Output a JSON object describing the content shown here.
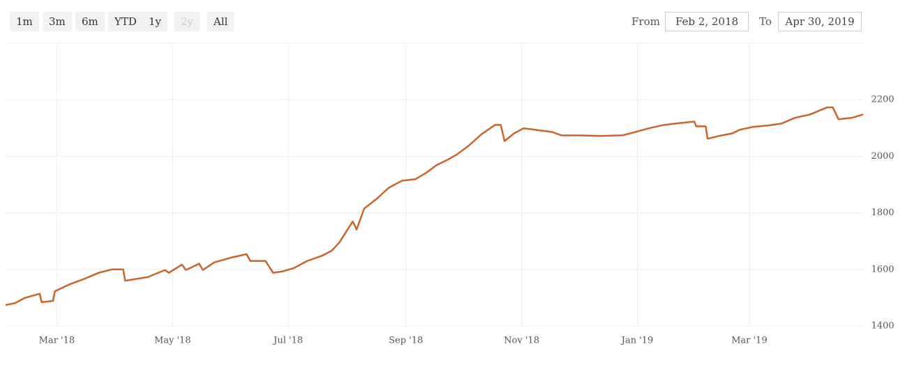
{
  "chart_data": {
    "type": "line",
    "range_selector": {
      "buttons": [
        {
          "label": "1m",
          "enabled": true
        },
        {
          "label": "3m",
          "enabled": true
        },
        {
          "label": "6m",
          "enabled": true
        },
        {
          "label": "YTD",
          "enabled": true
        },
        {
          "label": "1y",
          "enabled": true
        },
        {
          "label": "2y",
          "enabled": false
        },
        {
          "label": "All",
          "enabled": true
        }
      ],
      "from_label": "From",
      "from": "Feb 2, 2018",
      "to_label": "To",
      "to": "Apr 30, 2019"
    },
    "x": [
      "2018-02-02",
      "2018-02-07",
      "2018-02-12",
      "2018-02-20",
      "2018-02-21",
      "2018-02-27",
      "2018-02-28",
      "2018-03-08",
      "2018-03-16",
      "2018-03-23",
      "2018-03-30",
      "2018-04-05",
      "2018-04-06",
      "2018-04-18",
      "2018-04-27",
      "2018-04-29",
      "2018-05-06",
      "2018-05-08",
      "2018-05-15",
      "2018-05-17",
      "2018-05-23",
      "2018-06-01",
      "2018-06-09",
      "2018-06-11",
      "2018-06-19",
      "2018-06-23",
      "2018-06-28",
      "2018-07-04",
      "2018-07-11",
      "2018-07-19",
      "2018-07-24",
      "2018-07-28",
      "2018-07-31",
      "2018-08-04",
      "2018-08-06",
      "2018-08-10",
      "2018-08-17",
      "2018-08-23",
      "2018-08-30",
      "2018-09-06",
      "2018-09-12",
      "2018-09-17",
      "2018-09-23",
      "2018-09-28",
      "2018-10-04",
      "2018-10-11",
      "2018-10-18",
      "2018-10-21",
      "2018-10-23",
      "2018-10-28",
      "2018-11-02",
      "2018-11-08",
      "2018-11-17",
      "2018-11-22",
      "2018-12-01",
      "2018-12-13",
      "2018-12-24",
      "2018-12-31",
      "2019-01-07",
      "2019-01-15",
      "2019-01-24",
      "2019-01-31",
      "2019-02-01",
      "2019-02-06",
      "2019-02-07",
      "2019-02-13",
      "2019-02-20",
      "2019-02-24",
      "2019-03-03",
      "2019-03-11",
      "2019-03-18",
      "2019-03-25",
      "2019-04-02",
      "2019-04-11",
      "2019-04-14",
      "2019-04-17",
      "2019-04-24",
      "2019-04-30"
    ],
    "series": [
      {
        "color": "#c9652b",
        "values": [
          1474,
          1481,
          1499,
          1514,
          1484,
          1489,
          1523,
          1548,
          1568,
          1588,
          1600,
          1600,
          1560,
          1573,
          1598,
          1588,
          1617,
          1598,
          1620,
          1598,
          1625,
          1642,
          1654,
          1630,
          1630,
          1588,
          1593,
          1605,
          1630,
          1649,
          1667,
          1696,
          1728,
          1770,
          1741,
          1815,
          1852,
          1889,
          1914,
          1919,
          1943,
          1968,
          1988,
          2007,
          2037,
          2079,
          2111,
          2111,
          2054,
          2081,
          2099,
          2094,
          2086,
          2074,
          2074,
          2072,
          2074,
          2086,
          2099,
          2111,
          2118,
          2123,
          2106,
          2106,
          2062,
          2072,
          2081,
          2094,
          2104,
          2109,
          2116,
          2136,
          2148,
          2173,
          2173,
          2131,
          2136,
          2148
        ]
      }
    ],
    "xlim": [
      "2018-02-02",
      "2019-04-30"
    ],
    "xticks": [
      {
        "value": "2018-03-01",
        "label": "Mar '18"
      },
      {
        "value": "2018-05-01",
        "label": "May '18"
      },
      {
        "value": "2018-07-01",
        "label": "Jul '18"
      },
      {
        "value": "2018-09-01",
        "label": "Sep '18"
      },
      {
        "value": "2018-11-01",
        "label": "Nov '18"
      },
      {
        "value": "2019-01-01",
        "label": "Jan '19"
      },
      {
        "value": "2019-03-01",
        "label": "Mar '19"
      }
    ],
    "ylim": [
      1400,
      2400
    ],
    "yticks": [
      1400,
      1600,
      1800,
      2000,
      2200
    ],
    "grid": true
  }
}
